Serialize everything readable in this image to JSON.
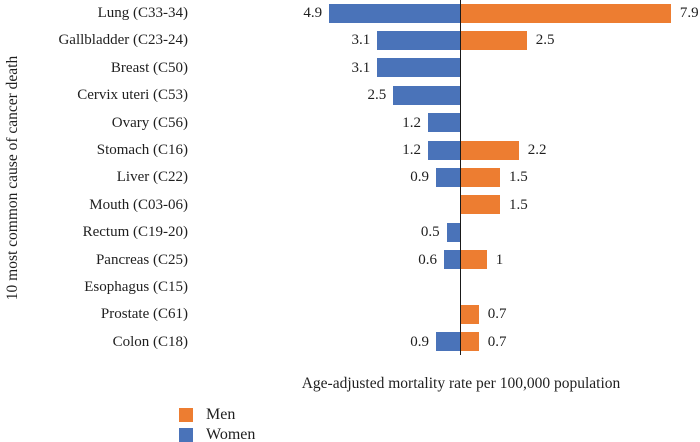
{
  "figure": {
    "y_axis_title": "10 most common cause of cancer death",
    "x_axis_label": "Age-adjusted mortality rate per 100,000 population"
  },
  "legend": {
    "position": "bottom-left",
    "items": [
      {
        "label": "Men",
        "color": "#ED7D31"
      },
      {
        "label": "Women",
        "color": "#4A73B9"
      }
    ]
  },
  "chart_data": {
    "type": "bar",
    "variant": "diverging-horizontal",
    "title": "",
    "xlabel": "Age-adjusted mortality rate per 100,000 population",
    "ylabel": "10 most common cause of cancer death",
    "axis_notes": {
      "zero_line": true,
      "x_tick_labels_shown": false,
      "value_labels_at_bar_ends": true
    },
    "categories": [
      "Lung (C33-34)",
      "Gallbladder (C23-24)",
      "Breast (C50)",
      "Cervix uteri (C53)",
      "Ovary (C56)",
      "Stomach (C16)",
      "Liver (C22)",
      "Mouth (C03-06)",
      "Rectum (C19-20)",
      "Pancreas (C25)",
      "Esophagus (C15)",
      "Prostate (C61)",
      "Colon (C18)"
    ],
    "series": [
      {
        "name": "Men",
        "side": "right",
        "color": "#ED7D31",
        "values": [
          7.9,
          2.5,
          null,
          null,
          null,
          2.2,
          1.5,
          1.5,
          null,
          1,
          null,
          0.7,
          0.7
        ]
      },
      {
        "name": "Women",
        "side": "left",
        "color": "#4A73B9",
        "values": [
          4.9,
          3.1,
          3.1,
          2.5,
          1.2,
          1.2,
          0.9,
          null,
          0.5,
          0.6,
          null,
          null,
          0.9
        ]
      }
    ]
  }
}
